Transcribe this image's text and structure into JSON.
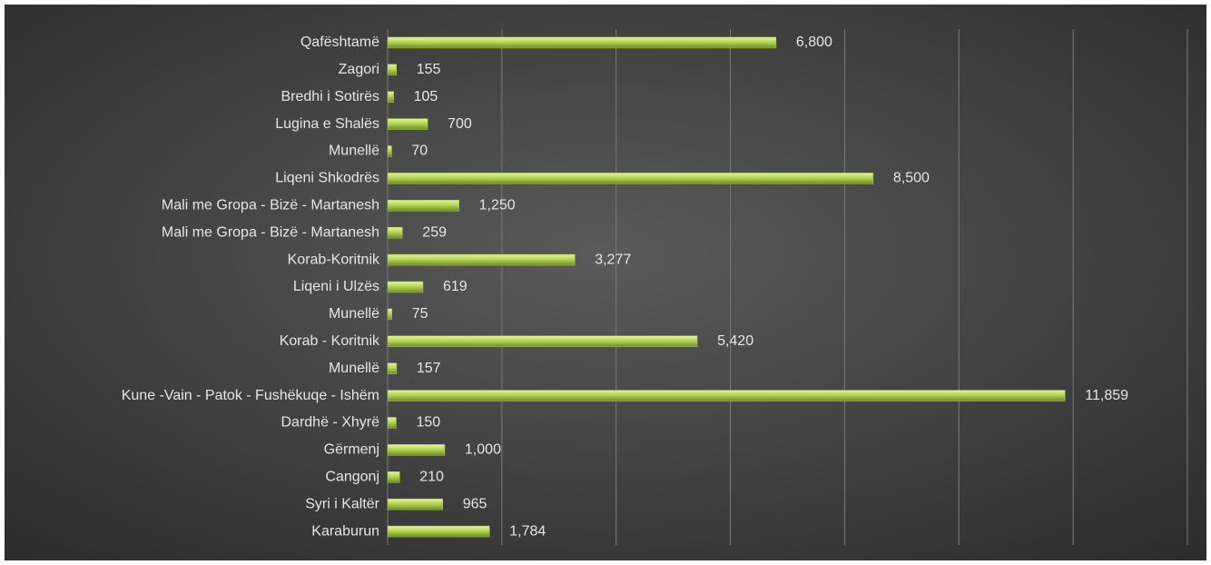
{
  "chart_data": {
    "type": "bar",
    "orientation": "horizontal",
    "categories": [
      "Qafështamë",
      "Zagori",
      "Bredhi i Sotirës",
      "Lugina e Shalës",
      "Munellë",
      "Liqeni Shkodrës",
      "Mali me Gropa - Bizë - Martanesh",
      "Mali me Gropa - Bizë - Martanesh",
      "Korab-Koritnik",
      "Liqeni i Ulzës",
      "Munellë",
      "Korab - Koritnik",
      "Munellë",
      "Kune -Vain - Patok - Fushëkuqe - Ishëm",
      "Dardhë - Xhyrë",
      "Gërmenj",
      "Cangonj",
      "Syri i Kaltër",
      "Karaburun"
    ],
    "values": [
      6800,
      155,
      105,
      700,
      70,
      8500,
      1250,
      259,
      3277,
      619,
      75,
      5420,
      157,
      11859,
      150,
      1000,
      210,
      965,
      1784
    ],
    "value_labels": [
      "6,800",
      "155",
      "105",
      "700",
      "70",
      "8,500",
      "1,250",
      "259",
      "3,277",
      "619",
      "75",
      "5,420",
      "157",
      "11,859",
      "150",
      "1,000",
      "210",
      "965",
      "1,784"
    ],
    "color": "#a8c84a",
    "xlim": [
      0,
      14000
    ],
    "xticks": [
      0,
      2000,
      4000,
      6000,
      8000,
      10000,
      12000,
      14000
    ],
    "grid": true
  }
}
